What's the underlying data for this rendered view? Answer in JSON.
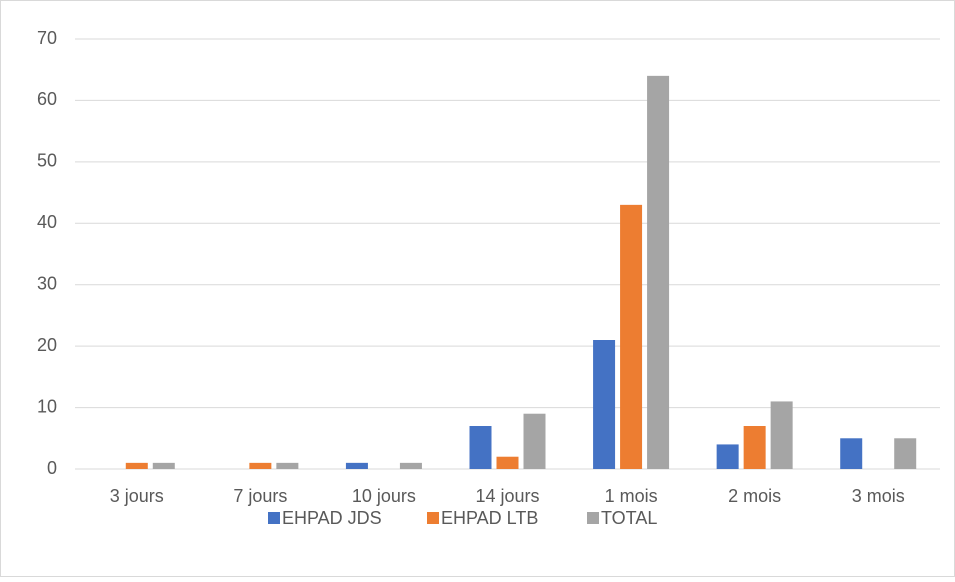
{
  "chart_data": {
    "type": "bar",
    "categories": [
      "3 jours",
      "7 jours",
      "10 jours",
      "14 jours",
      "1 mois",
      "2 mois",
      "3 mois"
    ],
    "series": [
      {
        "name": "EHPAD JDS",
        "color": "#4472c4",
        "values": [
          0,
          0,
          1,
          7,
          21,
          4,
          5
        ]
      },
      {
        "name": "EHPAD LTB",
        "color": "#ed7d31",
        "values": [
          1,
          1,
          0,
          2,
          43,
          7,
          0
        ]
      },
      {
        "name": "TOTAL",
        "color": "#a5a5a5",
        "values": [
          1,
          1,
          1,
          9,
          64,
          11,
          5
        ]
      }
    ],
    "ylim": [
      0,
      70
    ],
    "yticks": [
      0,
      10,
      20,
      30,
      40,
      50,
      60,
      70
    ],
    "grid": true,
    "legend": "bottom"
  }
}
